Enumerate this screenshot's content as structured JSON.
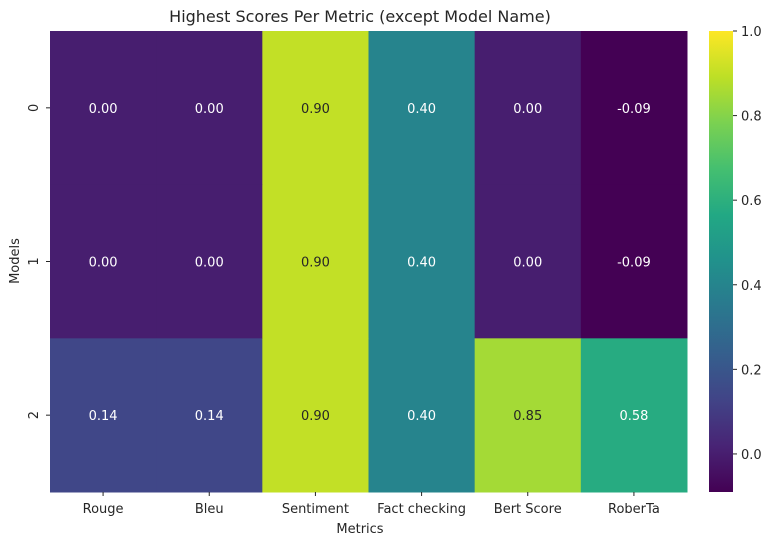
{
  "chart_data": {
    "type": "heatmap",
    "title": "Highest Scores Per Metric (except Model Name)",
    "xlabel": "Metrics",
    "ylabel": "Models",
    "x_categories": [
      "Rouge",
      "Bleu",
      "Sentiment",
      "Fact checking",
      "Bert Score",
      "RoberTa"
    ],
    "y_categories": [
      "0",
      "1",
      "2"
    ],
    "values": [
      [
        0.0,
        0.0,
        0.9,
        0.4,
        0.0,
        -0.09
      ],
      [
        0.0,
        0.0,
        0.9,
        0.4,
        0.0,
        -0.09
      ],
      [
        0.14,
        0.14,
        0.9,
        0.4,
        0.85,
        0.58
      ]
    ],
    "value_format": "0.00",
    "colormap": "viridis",
    "color_range": [
      -0.09,
      1.0
    ],
    "colorbar": {
      "ticks": [
        0.0,
        0.2,
        0.4,
        0.6,
        0.8,
        1.0
      ],
      "tick_labels": [
        "0.0",
        "0.2",
        "0.4",
        "0.6",
        "0.8",
        "1.0"
      ],
      "placement": "right"
    },
    "grid": false
  }
}
